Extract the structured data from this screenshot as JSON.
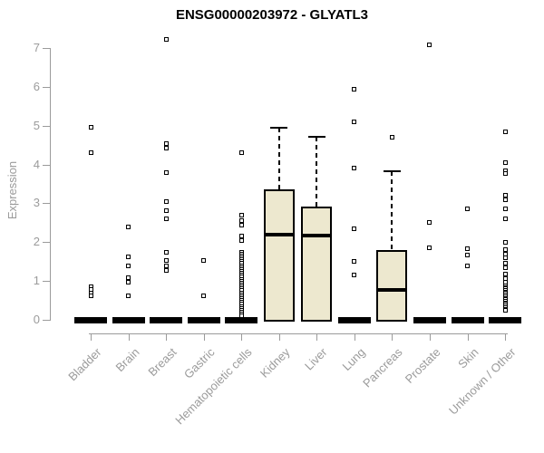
{
  "chart_data": {
    "type": "boxplot",
    "title": "ENSG00000203972 - GLYATL3",
    "ylabel": "Expression",
    "xlabel": "",
    "ylim": [
      0,
      7
    ],
    "yticks": [
      0,
      1,
      2,
      3,
      4,
      5,
      6,
      7
    ],
    "grid": false,
    "legend": "none",
    "colors": {
      "box_fill": "#ede8cf",
      "box_stroke": "#000000",
      "median": "#000000",
      "outlier_fill": "#ffffff",
      "outlier_stroke": "#000000",
      "axis": "#9b9b9b",
      "title": "#000000",
      "background": "#ffffff"
    },
    "categories": [
      "Bladder",
      "Brain",
      "Breast",
      "Gastric",
      "Hematopoietic cells",
      "Kidney",
      "Liver",
      "Lung",
      "Pancreas",
      "Prostate",
      "Skin",
      "Unknown / Other"
    ],
    "series": [
      {
        "category": "Bladder",
        "q1": 0,
        "median": 0,
        "q3": 0,
        "whisker_low": 0,
        "whisker_high": 0,
        "outliers": [
          4.97,
          4.3,
          0.86,
          0.78,
          0.7,
          0.62
        ]
      },
      {
        "category": "Brain",
        "q1": 0,
        "median": 0,
        "q3": 0,
        "whisker_low": 0,
        "whisker_high": 0,
        "outliers": [
          2.4,
          1.63,
          1.4,
          1.08,
          0.98,
          0.62
        ]
      },
      {
        "category": "Breast",
        "q1": 0,
        "median": 0,
        "q3": 0,
        "whisker_low": 0,
        "whisker_high": 0,
        "outliers": [
          7.22,
          4.55,
          4.43,
          3.8,
          3.05,
          2.82,
          2.6,
          1.75,
          1.52,
          1.38,
          1.28
        ]
      },
      {
        "category": "Gastric",
        "q1": 0,
        "median": 0,
        "q3": 0,
        "whisker_low": 0,
        "whisker_high": 0,
        "outliers": [
          1.52,
          0.62
        ]
      },
      {
        "category": "Hematopoietic cells",
        "q1": 0,
        "median": 0,
        "q3": 0,
        "whisker_low": 0,
        "whisker_high": 0,
        "outliers": [
          4.3,
          2.7,
          2.55,
          2.43,
          2.17,
          2.05,
          1.75,
          1.7,
          1.65,
          1.6,
          1.55,
          1.5,
          1.45,
          1.4,
          1.35,
          1.3,
          1.25,
          1.2,
          1.15,
          1.1,
          1.05,
          1.0,
          0.95,
          0.9,
          0.85,
          0.8,
          0.75,
          0.7,
          0.65,
          0.6,
          0.55,
          0.5,
          0.45,
          0.4,
          0.35,
          0.3,
          0.25,
          0.2,
          0.15,
          0.1
        ]
      },
      {
        "category": "Kidney",
        "q1": 0,
        "median": 2.2,
        "q3": 3.35,
        "whisker_low": 0,
        "whisker_high": 4.95,
        "outliers": []
      },
      {
        "category": "Liver",
        "q1": 0,
        "median": 2.17,
        "q3": 2.92,
        "whisker_low": 0,
        "whisker_high": 4.72,
        "outliers": []
      },
      {
        "category": "Lung",
        "q1": 0,
        "median": 0,
        "q3": 0,
        "whisker_low": 0,
        "whisker_high": 0,
        "outliers": [
          5.95,
          5.1,
          3.9,
          2.35,
          1.5,
          1.15
        ]
      },
      {
        "category": "Pancreas",
        "q1": 0,
        "median": 0.78,
        "q3": 1.8,
        "whisker_low": 0,
        "whisker_high": 3.82,
        "outliers": [
          4.7
        ]
      },
      {
        "category": "Prostate",
        "q1": 0,
        "median": 0,
        "q3": 0,
        "whisker_low": 0,
        "whisker_high": 0,
        "outliers": [
          7.08,
          2.52,
          1.85
        ]
      },
      {
        "category": "Skin",
        "q1": 0,
        "median": 0,
        "q3": 0,
        "whisker_low": 0,
        "whisker_high": 0,
        "outliers": [
          2.87,
          1.84,
          1.66,
          1.4
        ]
      },
      {
        "category": "Unknown / Other",
        "q1": 0,
        "median": 0,
        "q3": 0,
        "whisker_low": 0,
        "whisker_high": 0,
        "outliers": [
          4.85,
          4.05,
          3.85,
          3.76,
          3.22,
          3.1,
          2.85,
          2.6,
          2.0,
          1.82,
          1.7,
          1.59,
          1.47,
          1.35,
          1.17,
          1.07,
          0.96,
          0.88,
          0.84,
          0.8,
          0.76,
          0.72,
          0.68,
          0.64,
          0.6,
          0.56,
          0.52,
          0.48,
          0.44,
          0.4,
          0.36,
          0.32,
          0.28,
          0.24
        ]
      }
    ]
  }
}
